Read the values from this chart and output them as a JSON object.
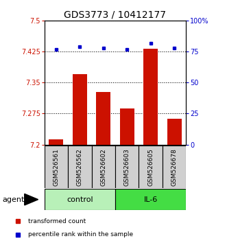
{
  "title": "GDS3773 / 10412177",
  "samples": [
    "GSM526561",
    "GSM526562",
    "GSM526602",
    "GSM526603",
    "GSM526605",
    "GSM526678"
  ],
  "red_values": [
    7.212,
    7.37,
    7.328,
    7.288,
    7.432,
    7.262
  ],
  "blue_values": [
    77,
    79,
    78,
    77,
    82,
    78
  ],
  "ylim_left": [
    7.2,
    7.5
  ],
  "ylim_right": [
    0,
    100
  ],
  "yticks_left": [
    7.2,
    7.275,
    7.35,
    7.425,
    7.5
  ],
  "ytick_labels_left": [
    "7.2",
    "7.275",
    "7.35",
    "7.425",
    "7.5"
  ],
  "yticks_right": [
    0,
    25,
    50,
    75,
    100
  ],
  "ytick_labels_right": [
    "0",
    "25",
    "50",
    "75",
    "100%"
  ],
  "groups": [
    {
      "label": "control",
      "indices": [
        0,
        1,
        2
      ],
      "color": "#b8f0b8"
    },
    {
      "label": "IL-6",
      "indices": [
        3,
        4,
        5
      ],
      "color": "#44dd44"
    }
  ],
  "bar_color": "#cc1100",
  "dot_color": "#0000cc",
  "bar_width": 0.6,
  "left_tick_color": "#cc1100",
  "right_tick_color": "#0000cc",
  "title_fontsize": 10,
  "sample_fontsize": 6.5,
  "group_fontsize": 8,
  "legend_fontsize": 6.5,
  "ytick_fontsize": 7,
  "agent_fontsize": 8
}
